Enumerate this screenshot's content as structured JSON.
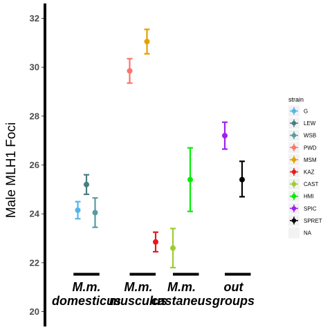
{
  "chart_data": {
    "type": "scatter",
    "ylabel": "Male MLH1 Foci",
    "ylim": [
      20,
      32.5
    ],
    "yticks": [
      20,
      22,
      24,
      26,
      28,
      30,
      32
    ],
    "group_labels": [
      {
        "line1": "M.m.",
        "line2": "domesticus",
        "center": 2
      },
      {
        "line1": "M.m.",
        "line2": "musculus",
        "center": 5
      },
      {
        "line1": "M.m.",
        "line2": "castaneus",
        "center": 7.5
      },
      {
        "line1": "out",
        "line2": "groups",
        "center": 10.5
      }
    ],
    "group_bars": [
      {
        "from": 1.25,
        "to": 2.75
      },
      {
        "from": 4.5,
        "to": 6
      },
      {
        "from": 7,
        "to": 8.5
      },
      {
        "from": 10,
        "to": 11.5
      }
    ],
    "legend_title": "strain",
    "legend_position": "right",
    "series": [
      {
        "name": "G",
        "color": "#56B4E9",
        "x": 1.5,
        "y": 24.15,
        "ymin": 23.8,
        "ymax": 24.5
      },
      {
        "name": "LEW",
        "color": "#4A7C80",
        "x": 2,
        "y": 25.2,
        "ymin": 24.8,
        "ymax": 25.6
      },
      {
        "name": "WSB",
        "color": "#5B9AA0",
        "x": 2.5,
        "y": 24.05,
        "ymin": 23.45,
        "ymax": 24.65
      },
      {
        "name": "PWD",
        "color": "#F8766D",
        "x": 4.5,
        "y": 29.85,
        "ymin": 29.35,
        "ymax": 30.35
      },
      {
        "name": "MSM",
        "color": "#E69F00",
        "x": 5.5,
        "y": 31.05,
        "ymin": 30.55,
        "ymax": 31.55
      },
      {
        "name": "KAZ",
        "color": "#E41A1C",
        "x": 6,
        "y": 22.85,
        "ymin": 22.45,
        "ymax": 23.25
      },
      {
        "name": "CAST",
        "color": "#9ACD32",
        "x": 7,
        "y": 22.6,
        "ymin": 21.8,
        "ymax": 23.4
      },
      {
        "name": "HMI",
        "color": "#00EE00",
        "x": 8,
        "y": 25.4,
        "ymin": 24.1,
        "ymax": 26.7
      },
      {
        "name": "SPIC",
        "color": "#A020F0",
        "x": 10,
        "y": 27.2,
        "ymin": 26.65,
        "ymax": 27.75
      },
      {
        "name": "SPRET",
        "color": "#000000",
        "x": 11,
        "y": 25.4,
        "ymin": 24.7,
        "ymax": 26.15
      },
      {
        "name": "NA",
        "color": "#EBEBEB",
        "legend_only": true
      }
    ]
  }
}
